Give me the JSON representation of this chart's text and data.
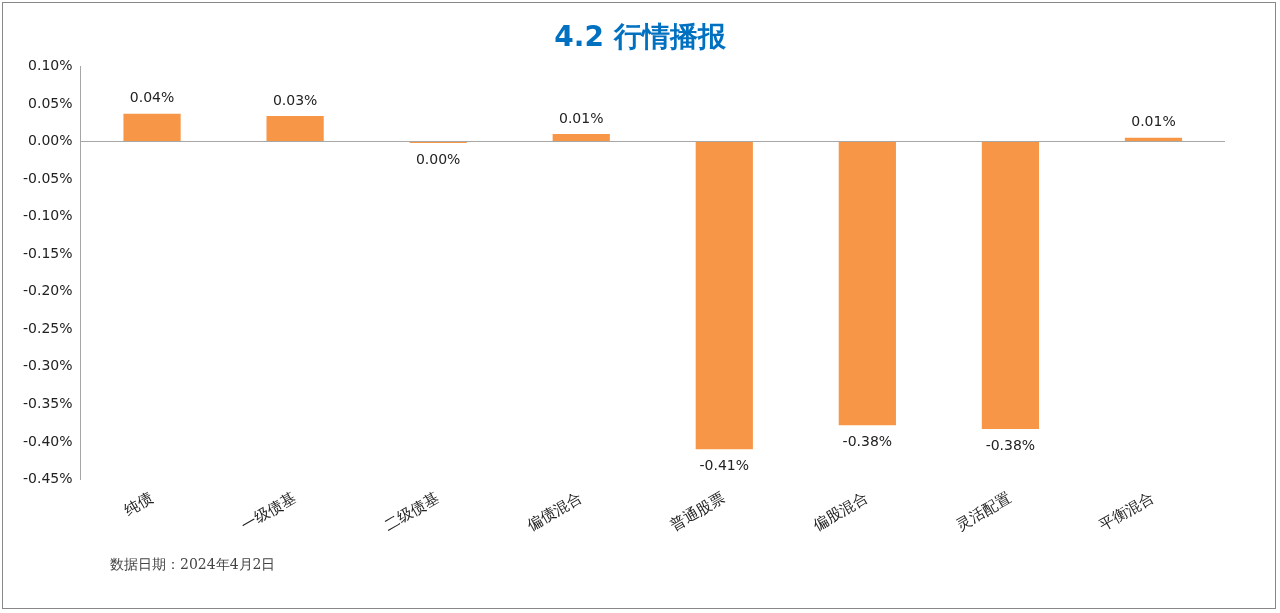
{
  "chart_data": {
    "type": "bar",
    "title": "4.2 行情播报",
    "categories": [
      "纯债",
      "一级债基",
      "二级债基",
      "偏债混合",
      "普通股票",
      "偏股混合",
      "灵活配置",
      "平衡混合"
    ],
    "values": [
      0.037,
      0.034,
      -0.002,
      0.01,
      -0.41,
      -0.378,
      -0.383,
      0.005
    ],
    "value_labels": [
      "0.04%",
      "0.03%",
      "0.00%",
      "0.01%",
      "-0.41%",
      "-0.38%",
      "-0.38%",
      "0.01%"
    ],
    "color": "#f79646",
    "ylim": [
      -0.45,
      0.1
    ],
    "yticks": [
      {
        "value": 0.1,
        "label": "0.10%"
      },
      {
        "value": 0.05,
        "label": "0.05%"
      },
      {
        "value": 0,
        "label": "0.00%"
      },
      {
        "value": -0.05,
        "label": "-0.05%"
      },
      {
        "value": -0.1,
        "label": "-0.10%"
      },
      {
        "value": -0.15,
        "label": "-0.15%"
      },
      {
        "value": -0.2,
        "label": "-0.20%"
      },
      {
        "value": -0.25,
        "label": "-0.25%"
      },
      {
        "value": -0.3,
        "label": "-0.30%"
      },
      {
        "value": -0.35,
        "label": "-0.35%"
      },
      {
        "value": -0.4,
        "label": "-0.40%"
      },
      {
        "value": -0.45,
        "label": "-0.45%"
      }
    ],
    "grid": false,
    "legend": false,
    "ref_lines": [
      {
        "axis": "y",
        "value": 0,
        "color": "#a6a6a6"
      }
    ],
    "annotations": [
      "数据日期：2024年4月2日"
    ]
  }
}
